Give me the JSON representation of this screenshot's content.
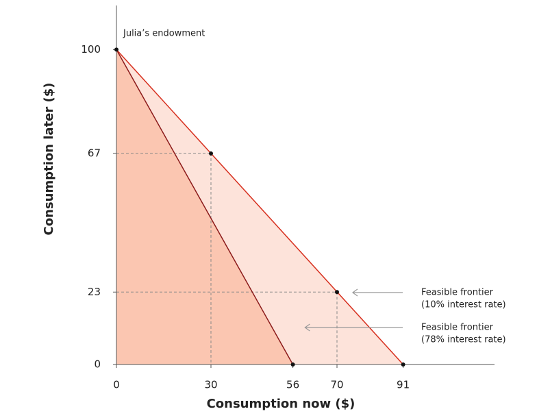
{
  "chart_data": {
    "type": "line",
    "xlabel": "Consumption now ($)",
    "ylabel": "Consumption later ($)",
    "endowment_label": "Julia’s endowment",
    "xlim": [
      0,
      120
    ],
    "ylim": [
      0,
      114
    ],
    "xticks": [
      0,
      30,
      56,
      70,
      91
    ],
    "yticks": [
      0,
      23,
      67,
      100
    ],
    "series": [
      {
        "name": "Feasible frontier",
        "note": "(10% interest rate)",
        "color": "#d7301f",
        "fill": "#fde3da",
        "x": [
          0,
          91
        ],
        "values": [
          100,
          0
        ]
      },
      {
        "name": "Feasible frontier",
        "note": "(78% interest rate)",
        "color": "#8b1a1a",
        "fill": "#fbc6b1",
        "x": [
          0,
          56
        ],
        "values": [
          100,
          0
        ]
      }
    ],
    "points": {
      "color": "#111111",
      "x": [
        0,
        30,
        70,
        56,
        91
      ],
      "values": [
        100,
        67,
        23,
        0,
        0
      ]
    }
  }
}
